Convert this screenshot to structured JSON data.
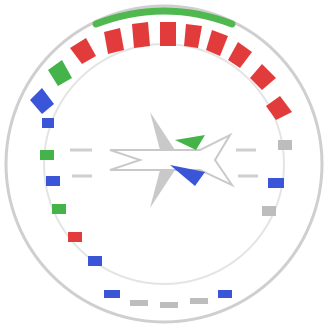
{
  "emblem": {
    "icon": "circular-seal-emblem",
    "colors": {
      "ring": "#ffffff",
      "outline": "#d9d9d9",
      "top_arc": "#4fb84f",
      "accent_red": "#e23b3b",
      "accent_blue": "#3b55d9",
      "accent_green": "#44b34a",
      "mark": "#bdbdbd"
    }
  }
}
